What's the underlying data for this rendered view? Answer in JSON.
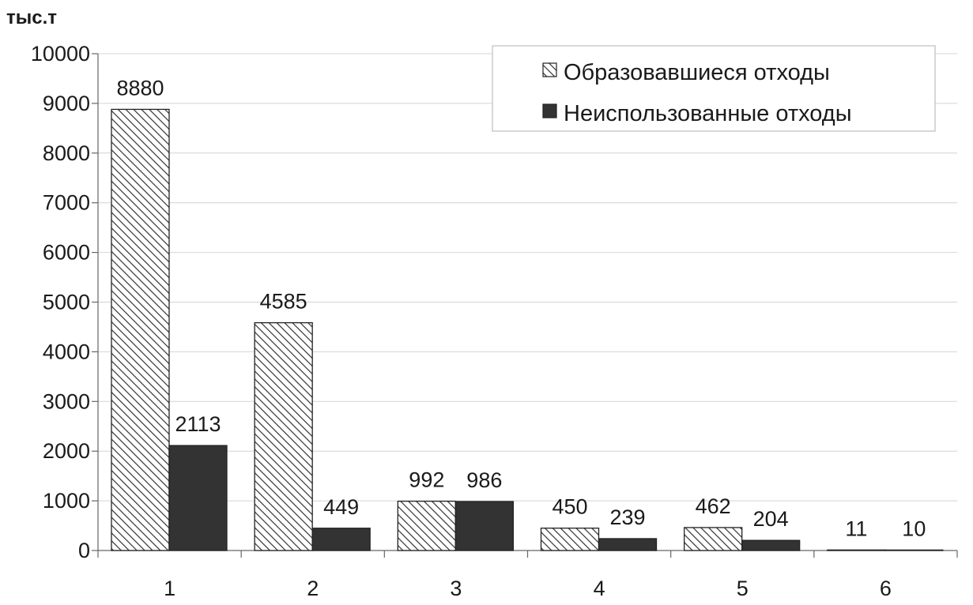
{
  "chart_data": {
    "type": "bar",
    "ylabel": "тыс.т",
    "xlabel": "",
    "categories": [
      "1",
      "2",
      "3",
      "4",
      "5",
      "6"
    ],
    "ylim": [
      0,
      10000
    ],
    "yticks": [
      0,
      1000,
      2000,
      3000,
      4000,
      5000,
      6000,
      7000,
      8000,
      9000,
      10000
    ],
    "grid": true,
    "legend_position": "top-right",
    "series": [
      {
        "name": "Образовавшиеся отходы",
        "values": [
          8880,
          4585,
          992,
          450,
          462,
          11
        ],
        "pattern": "hatched",
        "color": "#ffffff"
      },
      {
        "name": "Неиспользованные отходы",
        "values": [
          2113,
          449,
          986,
          239,
          204,
          10
        ],
        "pattern": "solid",
        "color": "#333333"
      }
    ]
  }
}
